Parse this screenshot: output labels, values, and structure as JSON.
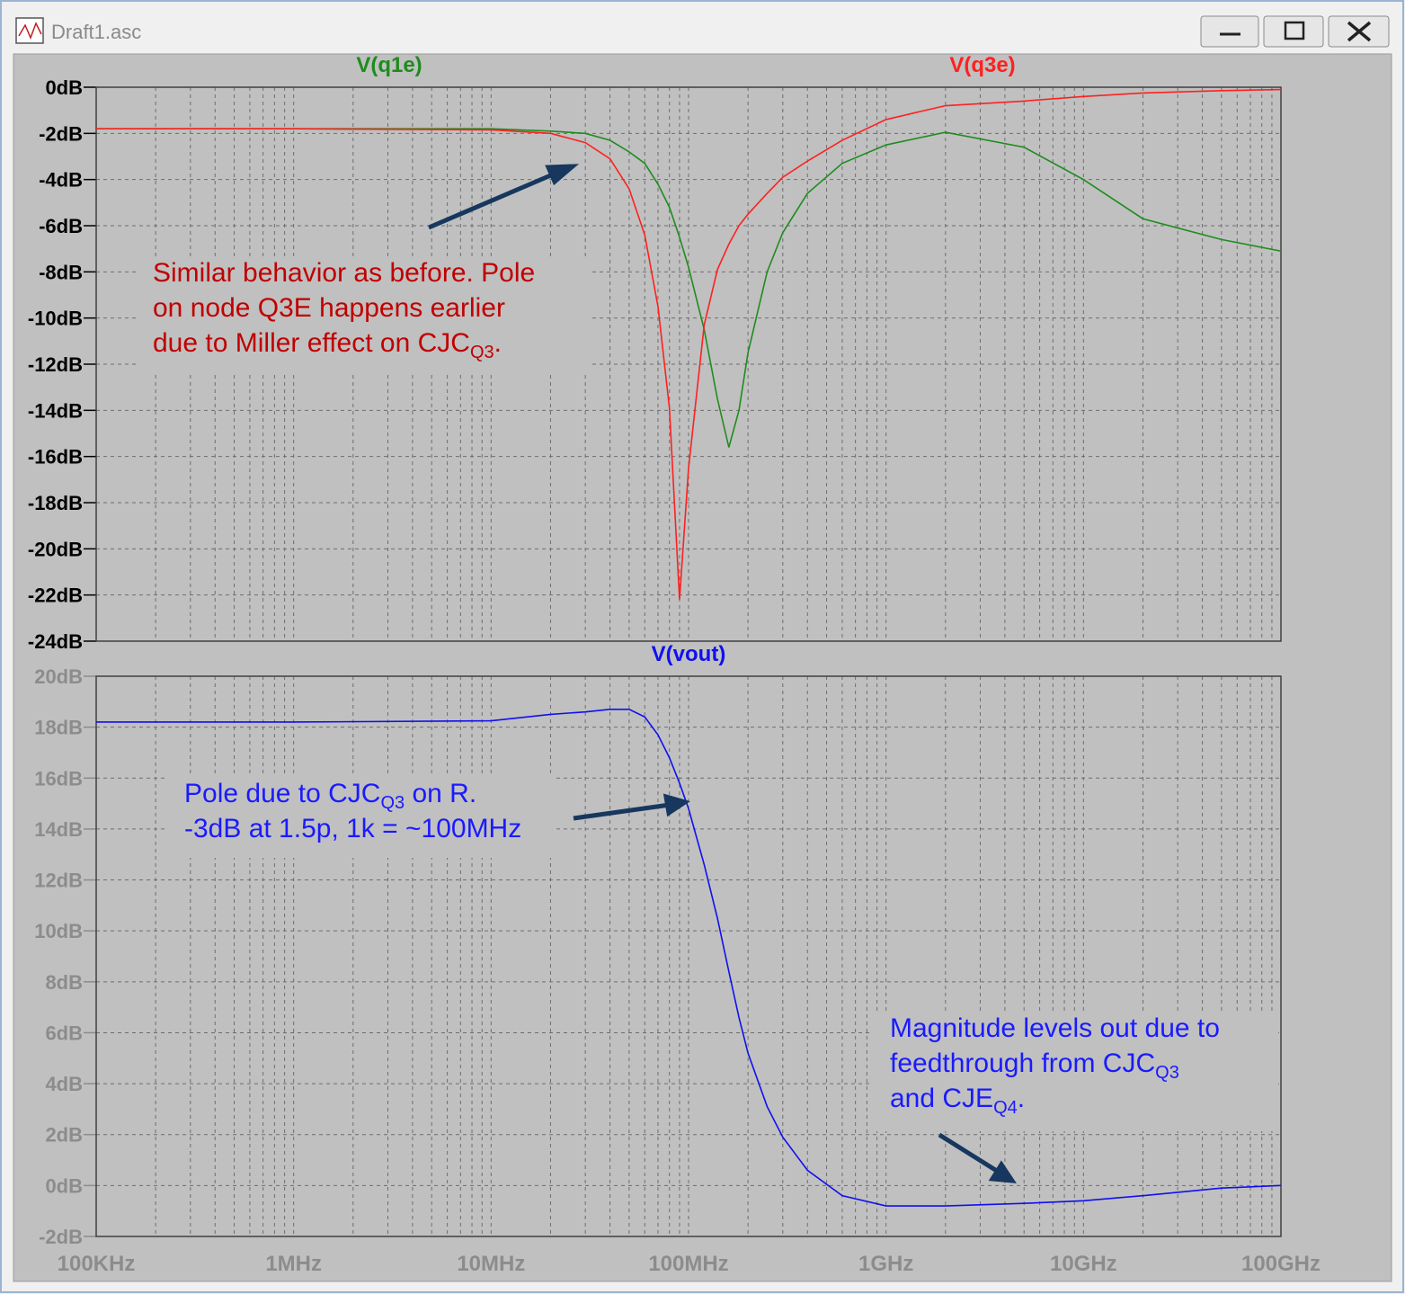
{
  "window": {
    "title": "Draft1.asc"
  },
  "chart_data": [
    {
      "type": "line",
      "log_x": true,
      "grid": true,
      "tick_color": "#000000",
      "x": [
        100000,
        1000000,
        10000000,
        20000000,
        30000000,
        40000000,
        50000000,
        60000000,
        70000000,
        80000000,
        90000000,
        100000000,
        120000000,
        140000000,
        160000000,
        180000000,
        200000000,
        250000000,
        300000000,
        400000000,
        600000000,
        1000000000,
        2000000000,
        5000000000,
        10000000000,
        20000000000,
        50000000000,
        100000000000
      ],
      "xlim": [
        100000,
        100000000000
      ],
      "xticks": [
        100000,
        1000000,
        10000000,
        100000000,
        1000000000,
        10000000000,
        100000000000
      ],
      "ylim": [
        -24,
        0
      ],
      "yticks": [
        {
          "value": 0,
          "label": "0dB"
        },
        {
          "value": -2,
          "label": "-2dB"
        },
        {
          "value": -4,
          "label": "-4dB"
        },
        {
          "value": -6,
          "label": "-6dB"
        },
        {
          "value": -8,
          "label": "-8dB"
        },
        {
          "value": -10,
          "label": "-10dB"
        },
        {
          "value": -12,
          "label": "-12dB"
        },
        {
          "value": -14,
          "label": "-14dB"
        },
        {
          "value": -16,
          "label": "-16dB"
        },
        {
          "value": -18,
          "label": "-18dB"
        },
        {
          "value": -20,
          "label": "-20dB"
        },
        {
          "value": -22,
          "label": "-22dB"
        },
        {
          "value": -24,
          "label": "-24dB"
        }
      ],
      "series": [
        {
          "name": "V(q1e)",
          "color": "#1e8c1e",
          "values": [
            -1.8,
            -1.8,
            -1.8,
            -1.9,
            -2.0,
            -2.3,
            -2.8,
            -3.3,
            -4.2,
            -5.2,
            -6.5,
            -7.8,
            -10.5,
            -13.5,
            -15.6,
            -14,
            -11.5,
            -8,
            -6.3,
            -4.6,
            -3.3,
            -2.5,
            -1.95,
            -2.6,
            -4.0,
            -5.7,
            -6.6,
            -7.1
          ]
        },
        {
          "name": "V(q3e)",
          "color": "#ff2020",
          "values": [
            -1.8,
            -1.8,
            -1.85,
            -2.0,
            -2.4,
            -3.1,
            -4.4,
            -6.4,
            -9.5,
            -13.9,
            -22.2,
            -16.5,
            -10.3,
            -7.9,
            -6.8,
            -6.0,
            -5.5,
            -4.6,
            -3.9,
            -3.2,
            -2.3,
            -1.4,
            -0.8,
            -0.6,
            -0.4,
            -0.25,
            -0.15,
            -0.1
          ]
        }
      ],
      "annotations": [
        {
          "color": "#c00000",
          "lines": [
            [
              "Similar behavior as before.  Pole"
            ],
            [
              "on node Q3E happens earlier"
            ],
            [
              "due to Miller effect on CJC",
              "Q3",
              "."
            ]
          ]
        }
      ]
    },
    {
      "type": "line",
      "log_x": true,
      "grid": true,
      "tick_color": "#8c8c8c",
      "x": [
        100000,
        1000000,
        10000000,
        20000000,
        30000000,
        40000000,
        50000000,
        60000000,
        70000000,
        80000000,
        90000000,
        100000000,
        120000000,
        140000000,
        160000000,
        180000000,
        200000000,
        250000000,
        300000000,
        400000000,
        600000000,
        1000000000,
        2000000000,
        5000000000,
        10000000000,
        20000000000,
        50000000000,
        100000000000
      ],
      "xlim": [
        100000,
        100000000000
      ],
      "xticks": [
        {
          "value": 100000,
          "label": "100KHz"
        },
        {
          "value": 1000000,
          "label": "1MHz"
        },
        {
          "value": 10000000,
          "label": "10MHz"
        },
        {
          "value": 100000000,
          "label": "100MHz"
        },
        {
          "value": 1000000000,
          "label": "1GHz"
        },
        {
          "value": 10000000000,
          "label": "10GHz"
        },
        {
          "value": 100000000000,
          "label": "100GHz"
        }
      ],
      "ylim": [
        -2,
        20
      ],
      "yticks": [
        {
          "value": 20,
          "label": "20dB"
        },
        {
          "value": 18,
          "label": "18dB"
        },
        {
          "value": 16,
          "label": "16dB"
        },
        {
          "value": 14,
          "label": "14dB"
        },
        {
          "value": 12,
          "label": "12dB"
        },
        {
          "value": 10,
          "label": "10dB"
        },
        {
          "value": 8,
          "label": "8dB"
        },
        {
          "value": 6,
          "label": "6dB"
        },
        {
          "value": 4,
          "label": "4dB"
        },
        {
          "value": 2,
          "label": "2dB"
        },
        {
          "value": 0,
          "label": "0dB"
        },
        {
          "value": -2,
          "label": "-2dB"
        }
      ],
      "series": [
        {
          "name": "V(vout)",
          "color": "#1010f0",
          "values": [
            18.2,
            18.2,
            18.25,
            18.5,
            18.6,
            18.7,
            18.7,
            18.4,
            17.7,
            16.8,
            15.8,
            14.8,
            12.6,
            10.5,
            8.4,
            6.6,
            5.2,
            3.1,
            1.9,
            0.6,
            -0.4,
            -0.8,
            -0.8,
            -0.7,
            -0.6,
            -0.4,
            -0.1,
            0.0
          ]
        }
      ],
      "annotations": [
        {
          "color": "#1a1aff",
          "lines": [
            [
              "Pole due to CJC",
              "Q3",
              " on R."
            ],
            [
              "-3dB at 1.5p, 1k = ~100MHz"
            ]
          ]
        },
        {
          "color": "#1a1aff",
          "lines": [
            [
              "Magnitude levels out due to"
            ],
            [
              "feedthrough from CJC",
              "Q3"
            ],
            [
              "and CJE",
              "Q4",
              "."
            ]
          ]
        }
      ]
    }
  ]
}
